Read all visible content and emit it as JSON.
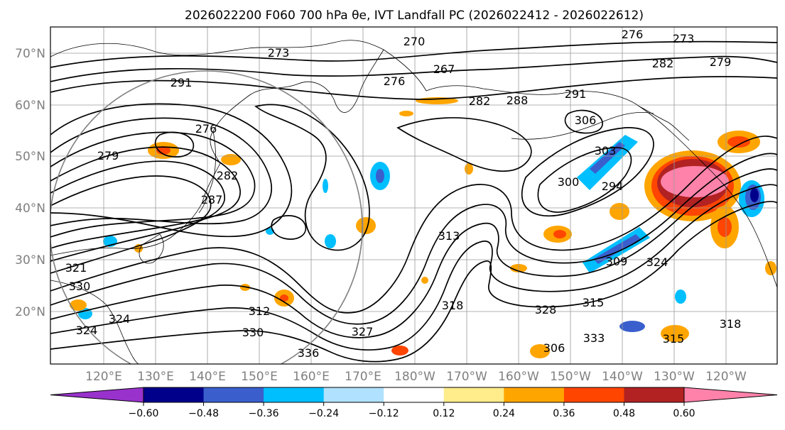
{
  "title": "2026022200 F060 700 hPa θe, IVT Landfall PC (2026022412 - 2026022612)",
  "lat_labels": [
    "70°N",
    "60°N",
    "50°N",
    "40°N",
    "30°N",
    "20°N"
  ],
  "lon_labels": [
    "120°E",
    "130°E",
    "140°E",
    "150°E",
    "160°E",
    "170°E",
    "180°W",
    "170°W",
    "160°W",
    "150°W",
    "140°W",
    "130°W",
    "120°W"
  ],
  "colorbar": {
    "colors": [
      "#9932cc",
      "#00008b",
      "#3a5fcd",
      "#00bfff",
      "#b0e2ff",
      "#ffffff",
      "#ffec8b",
      "#ffa500",
      "#ff4500",
      "#b22222",
      "#ff82ab"
    ],
    "ticks": [
      "−0.60",
      "−0.48",
      "−0.36",
      "−0.24",
      "−0.12",
      "0.12",
      "0.24",
      "0.36",
      "0.48",
      "0.60"
    ]
  },
  "contour_labels": [
    "270",
    "273",
    "276",
    "273",
    "279",
    "267",
    "276",
    "282",
    "291",
    "282",
    "288",
    "291",
    "306",
    "276",
    "279",
    "282",
    "287",
    "303",
    "300",
    "294",
    "313",
    "321",
    "330",
    "312",
    "330",
    "336",
    "327",
    "318",
    "328",
    "315",
    "309",
    "324",
    "333",
    "306",
    "315",
    "318",
    "324",
    "324"
  ],
  "colors": {
    "contour": "#000000",
    "grid": "#9a9a9a",
    "tick_labels": "#808080"
  }
}
